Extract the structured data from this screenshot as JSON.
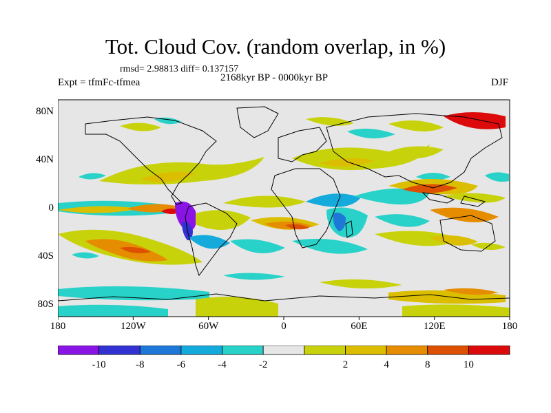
{
  "title": "Tot. Cloud Cov. (random overlap, in %)",
  "stats": "rmsd= 2.98813 diff= 0.137157",
  "left_string": "Expt = tfmFc-tfmea",
  "center_string": "2168kyr BP - 0000kyr BP",
  "right_string": "DJF",
  "map": {
    "projection": "cylindrical-equidistant",
    "lon_range": [
      -180,
      180
    ],
    "lat_range": [
      -90,
      90
    ],
    "x_tick_labels": [
      "180",
      "120W",
      "60W",
      "0",
      "60E",
      "120E",
      "180"
    ],
    "y_tick_labels": [
      "80N",
      "40N",
      "0",
      "40S",
      "80S"
    ],
    "background_color": "#e6e6e6",
    "coastline_color": "#000000"
  },
  "colorbar": {
    "labels": [
      "-10",
      "-8",
      "-6",
      "-4",
      "-2",
      "2",
      "4",
      "8",
      "10"
    ],
    "colors": [
      "#8a14e6",
      "#3232d2",
      "#1e78d7",
      "#14aadc",
      "#28d2c8",
      "#e6e6e6",
      "#c8d20a",
      "#dcbe00",
      "#e68c00",
      "#dc5000",
      "#dc0a0a"
    ]
  }
}
